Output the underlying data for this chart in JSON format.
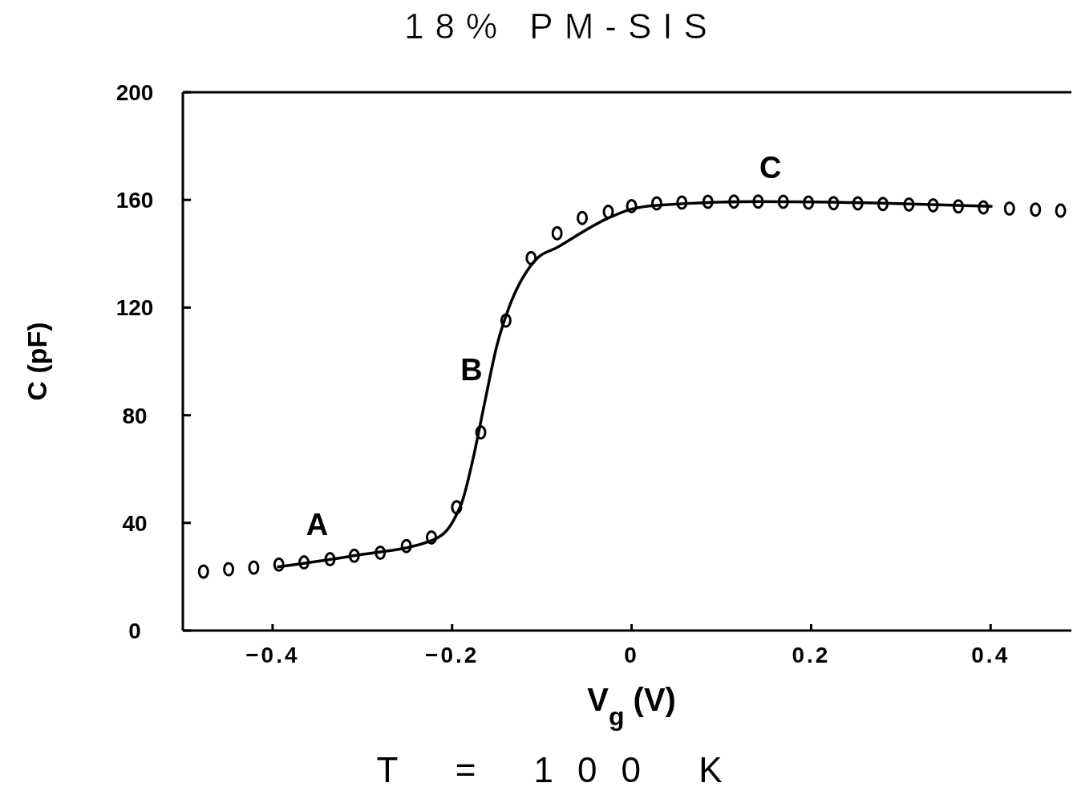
{
  "chart_data": {
    "type": "scatter",
    "title": "18% PM-SIS",
    "xlabel": "V$_{g}$ (V)",
    "ylabel": "C (pF)",
    "xlim": [
      -0.5,
      0.49
    ],
    "ylim": [
      0,
      200
    ],
    "xticks": [
      -0.4,
      -0.2,
      0,
      0.2,
      0.4
    ],
    "yticks": [
      0,
      40,
      80,
      120,
      160,
      200
    ],
    "grid": false,
    "marker": "circle",
    "series": [
      {
        "color": "#000000",
        "x": [
          -0.477,
          -0.449,
          -0.421,
          -0.393,
          -0.365,
          -0.336,
          -0.309,
          -0.28,
          -0.251,
          -0.223,
          -0.195,
          -0.168,
          -0.14,
          -0.112,
          -0.083,
          -0.055,
          -0.026,
          0.0,
          0.028,
          0.056,
          0.085,
          0.114,
          0.141,
          0.169,
          0.197,
          0.225,
          0.252,
          0.28,
          0.309,
          0.336,
          0.364,
          0.392,
          0.421,
          0.45,
          0.478
        ],
        "values": [
          21.9,
          22.8,
          23.4,
          24.5,
          25.3,
          26.5,
          27.8,
          28.9,
          31.4,
          34.6,
          45.8,
          73.6,
          115.2,
          138.4,
          147.6,
          153.3,
          155.6,
          157.7,
          158.7,
          159.0,
          159.3,
          159.4,
          159.4,
          159.3,
          159.0,
          158.8,
          158.7,
          158.5,
          158.3,
          158.0,
          157.6,
          157.2,
          156.8,
          156.4,
          156.0
        ]
      },
      {
        "type": "line",
        "color": "#000000",
        "marker": "none",
        "line_style": "solid",
        "x": [
          -0.395,
          -0.31,
          -0.223,
          -0.199,
          -0.188,
          -0.176,
          -0.164,
          -0.15,
          -0.137,
          -0.109,
          -0.081,
          -0.027,
          0.0,
          0.028,
          0.141,
          0.28,
          0.402
        ],
        "values": [
          23.6,
          27.8,
          33.4,
          40.6,
          48.7,
          64.8,
          84.2,
          106,
          119.7,
          137,
          142.7,
          153.1,
          156.6,
          158,
          159.4,
          158.8,
          157.6
        ]
      }
    ],
    "annotations": [
      {
        "text": "A",
        "x": -0.336,
        "y": 26.5
      },
      {
        "text": "B",
        "x": -0.164,
        "y": 84.2
      },
      {
        "text": "C",
        "x": 0.169,
        "y": 159.3
      },
      "T = 100 K"
    ]
  }
}
